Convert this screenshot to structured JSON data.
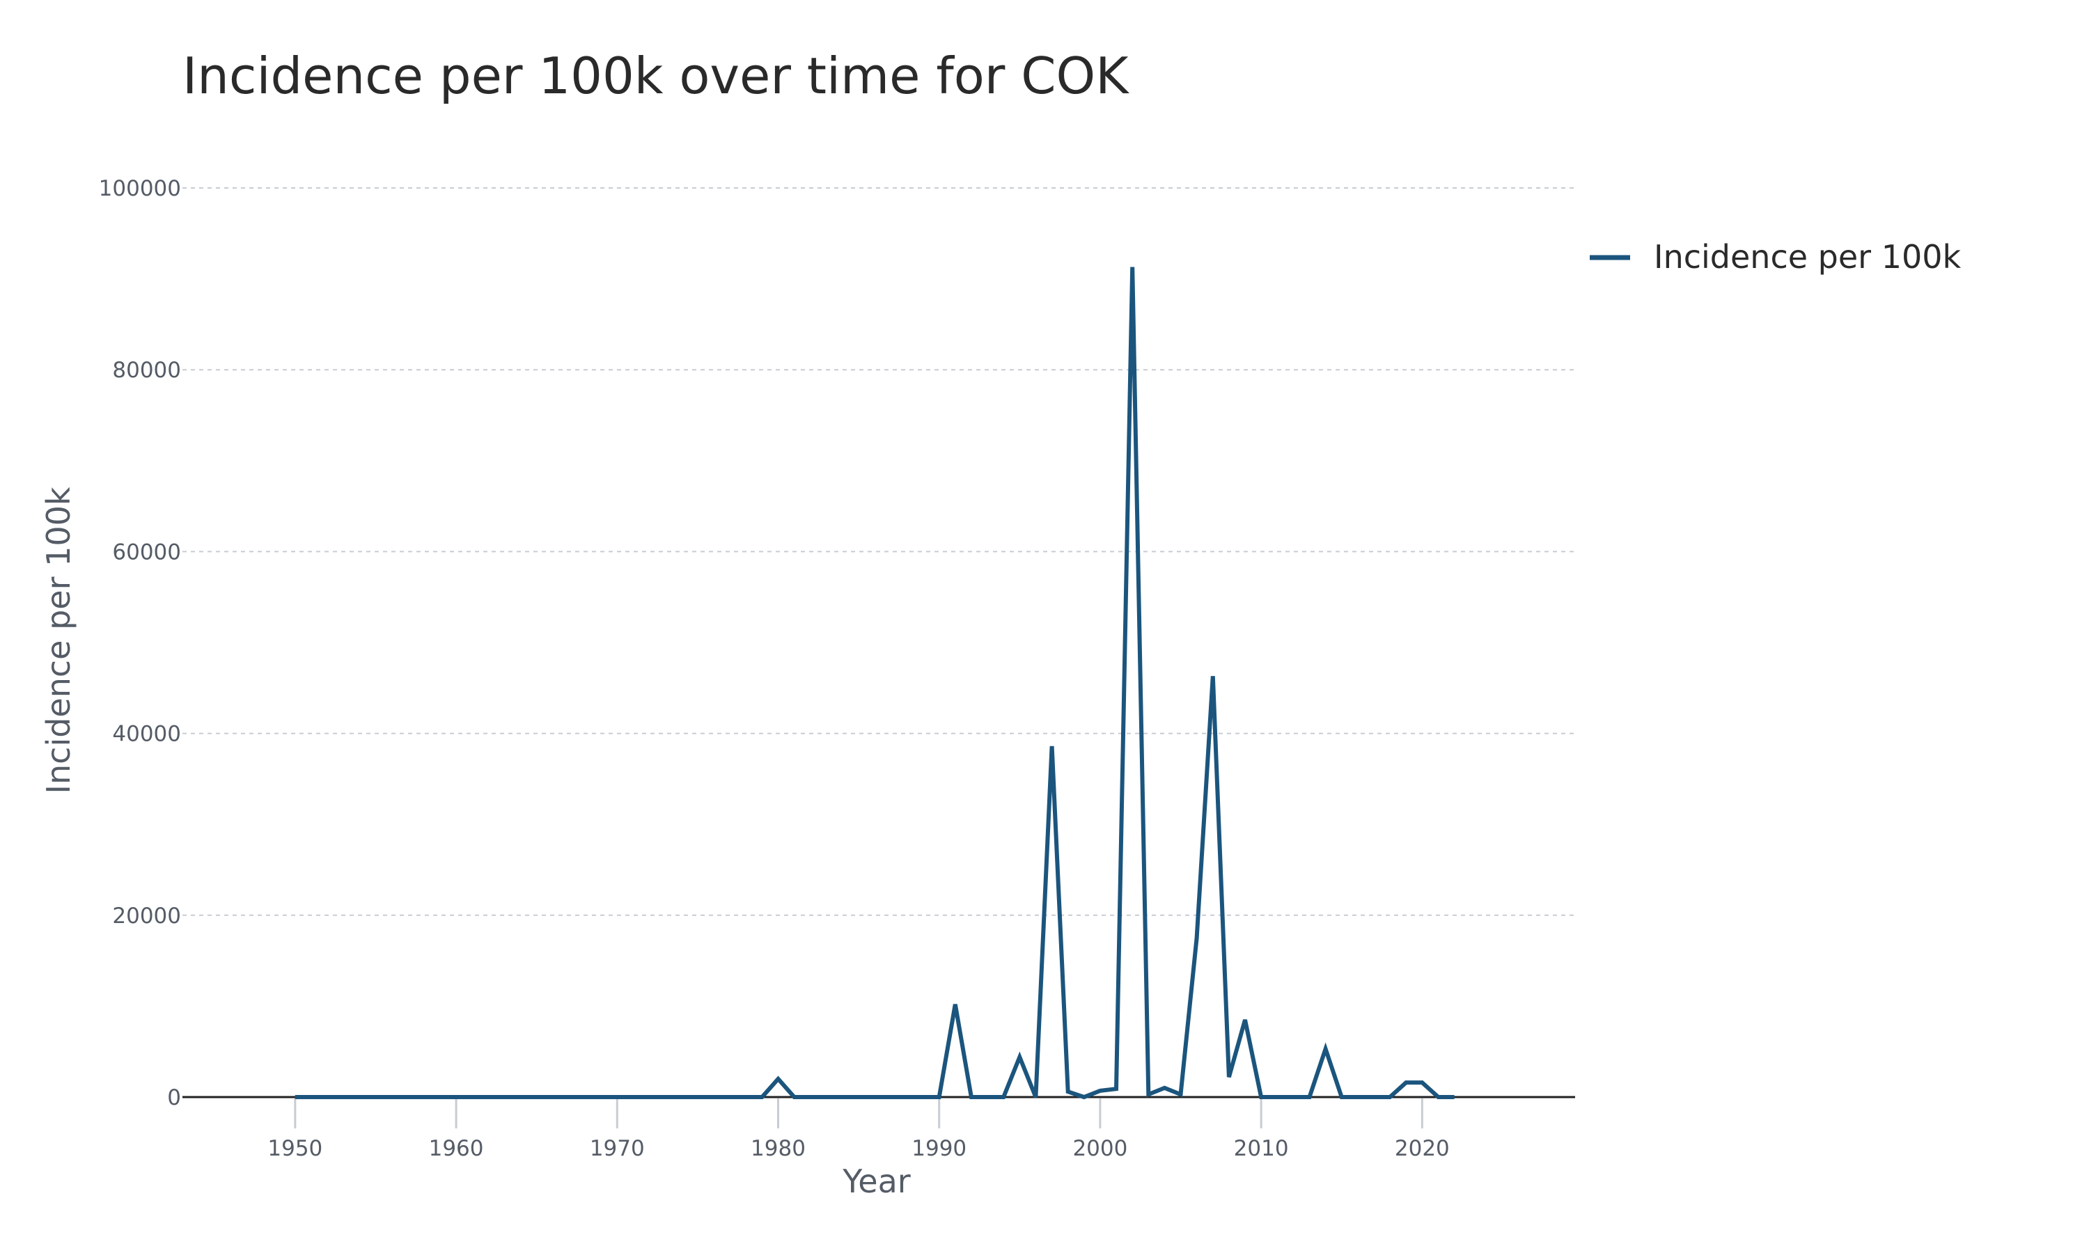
{
  "chart_data": {
    "type": "line",
    "title": "Incidence per 100k over time for COK",
    "xlabel": "Year",
    "ylabel": "Incidence per 100k",
    "xlim": [
      1943,
      2029.5
    ],
    "ylim": [
      0,
      100000
    ],
    "x_ticks": [
      1950,
      1960,
      1970,
      1980,
      1990,
      2000,
      2010,
      2020
    ],
    "y_ticks": [
      0,
      20000,
      40000,
      60000,
      80000,
      100000
    ],
    "grid": {
      "horizontal": true,
      "vertical": false,
      "style": "dashed"
    },
    "legend_position": "top-right",
    "colors": {
      "series": "#1b557d",
      "grid": "#c8ccd3",
      "axis": "#222222",
      "tick_text": "#555c66",
      "title_text": "#2a2a2a",
      "axis_title_text": "#555c66"
    },
    "series": [
      {
        "name": "Incidence per 100k",
        "x": [
          1950,
          1951,
          1952,
          1953,
          1954,
          1955,
          1956,
          1957,
          1958,
          1959,
          1960,
          1961,
          1962,
          1963,
          1964,
          1965,
          1966,
          1967,
          1968,
          1969,
          1970,
          1971,
          1972,
          1973,
          1974,
          1975,
          1976,
          1977,
          1978,
          1979,
          1980,
          1981,
          1982,
          1983,
          1984,
          1985,
          1986,
          1987,
          1988,
          1989,
          1990,
          1991,
          1992,
          1993,
          1994,
          1995,
          1996,
          1997,
          1998,
          1999,
          2000,
          2001,
          2002,
          2003,
          2004,
          2005,
          2006,
          2007,
          2008,
          2009,
          2010,
          2011,
          2012,
          2013,
          2014,
          2015,
          2016,
          2017,
          2018,
          2019,
          2020,
          2021,
          2022
        ],
        "y": [
          0,
          0,
          0,
          0,
          0,
          0,
          0,
          0,
          0,
          0,
          0,
          0,
          0,
          0,
          0,
          0,
          0,
          0,
          0,
          0,
          0,
          0,
          0,
          0,
          0,
          0,
          0,
          0,
          0,
          0,
          2000,
          0,
          0,
          0,
          0,
          0,
          0,
          0,
          0,
          0,
          0,
          10200,
          0,
          0,
          0,
          4400,
          0,
          38600,
          600,
          0,
          700,
          900,
          91300,
          300,
          1000,
          300,
          17500,
          46300,
          2200,
          8500,
          0,
          0,
          0,
          0,
          5300,
          0,
          0,
          0,
          0,
          1600,
          1600,
          0,
          0
        ]
      }
    ]
  }
}
